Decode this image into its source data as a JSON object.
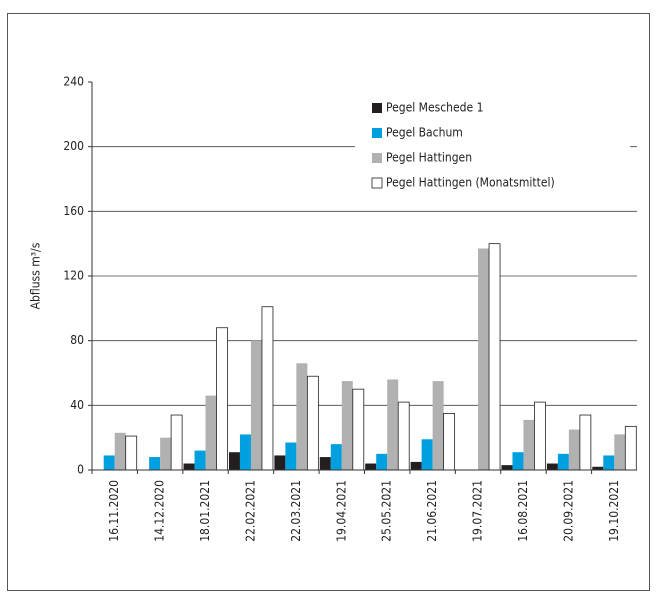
{
  "chart_data": {
    "type": "bar",
    "y_label": "Abfluss m³/s",
    "categories": [
      "16.11.2020",
      "14.12.2020",
      "18.01.2021",
      "22.02.2021",
      "22.03.2021",
      "19.04.2021",
      "25.05.2021",
      "21.06.2021",
      "19.07.2021",
      "16.08.2021",
      "20.09.2021",
      "19.10.2021"
    ],
    "series": [
      {
        "name": "Pegel Meschede 1",
        "color": "#231f20",
        "values": [
          null,
          null,
          4,
          11,
          9,
          8,
          4,
          5,
          null,
          3,
          4,
          2
        ]
      },
      {
        "name": "Pegel Bachum",
        "color": "#00a0e0",
        "values": [
          9,
          8,
          12,
          22,
          17,
          16,
          10,
          19,
          null,
          11,
          10,
          9
        ]
      },
      {
        "name": "Pegel Hattingen",
        "color": "#b1b1b1",
        "values": [
          23,
          20,
          46,
          80,
          66,
          55,
          56,
          55,
          137,
          31,
          25,
          22
        ]
      },
      {
        "name": "Pegel Hattingen (Monatsmittel)",
        "color": "#ffffff",
        "values": [
          21,
          34,
          88,
          101,
          58,
          50,
          42,
          35,
          140,
          42,
          34,
          27
        ]
      }
    ],
    "ylim": [
      0,
      240
    ],
    "yticks": [
      0,
      40,
      80,
      120,
      160,
      200,
      240
    ],
    "grid": true,
    "legend": "top-right"
  }
}
